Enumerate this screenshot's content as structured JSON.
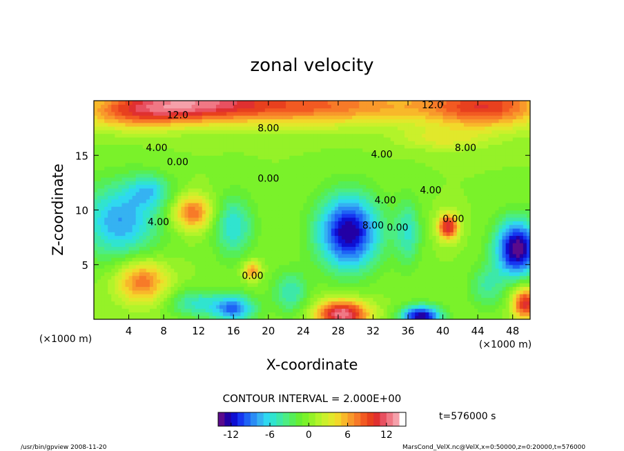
{
  "chart_data": {
    "type": "heatmap",
    "title": "zonal velocity",
    "xlabel": "X-coordinate",
    "ylabel": "Z-coordinate",
    "x_unit": "(×1000 m)",
    "y_unit": "(×1000 m)",
    "xlim": [
      0,
      50
    ],
    "ylim": [
      0,
      20
    ],
    "x_ticks": [
      4,
      8,
      12,
      16,
      20,
      24,
      28,
      32,
      36,
      40,
      44,
      48
    ],
    "y_ticks": [
      5,
      10,
      15
    ],
    "contour_interval_label": "CONTOUR INTERVAL = 2.000E+00",
    "contour_labels": [
      {
        "text": "12.0",
        "x": 9.6,
        "z": 18.4
      },
      {
        "text": "12.0",
        "x": 38.8,
        "z": 19.3
      },
      {
        "text": "8.00",
        "x": 20.0,
        "z": 17.2
      },
      {
        "text": "8.00",
        "x": 42.6,
        "z": 15.4
      },
      {
        "text": "4.00",
        "x": 7.2,
        "z": 15.4
      },
      {
        "text": "4.00",
        "x": 33.0,
        "z": 14.8
      },
      {
        "text": "0.00",
        "x": 9.6,
        "z": 14.1
      },
      {
        "text": "0.00",
        "x": 20.0,
        "z": 12.6
      },
      {
        "text": "4.00",
        "x": 7.4,
        "z": 8.6
      },
      {
        "text": "4.00",
        "x": 33.4,
        "z": 10.6
      },
      {
        "text": "8.00",
        "x": 32.0,
        "z": 8.3
      },
      {
        "text": "0.00",
        "x": 34.8,
        "z": 8.1
      },
      {
        "text": "4.00",
        "x": 38.6,
        "z": 11.5
      },
      {
        "text": "0.00",
        "x": 41.2,
        "z": 8.9
      },
      {
        "text": "0.00",
        "x": 18.2,
        "z": 3.7
      }
    ],
    "features": [
      {
        "x": 9.5,
        "z": 19.8,
        "amp": 10,
        "sx": 9,
        "sz": 1.7
      },
      {
        "x": 25,
        "z": 19.6,
        "amp": 8,
        "sx": 14,
        "sz": 1.8
      },
      {
        "x": 45,
        "z": 19.5,
        "amp": 9,
        "sx": 7,
        "sz": 2.0
      },
      {
        "x": 4,
        "z": 18.6,
        "amp": 4,
        "sx": 6,
        "sz": 1.4
      },
      {
        "x": 40,
        "z": 16.5,
        "amp": 3,
        "sx": 5,
        "sz": 1.0
      },
      {
        "x": 3,
        "z": 9.0,
        "amp": -8,
        "sx": 4.5,
        "sz": 3.5
      },
      {
        "x": 6.5,
        "z": 11.8,
        "amp": -5,
        "sx": 2.5,
        "sz": 1.5
      },
      {
        "x": 11.3,
        "z": 9.8,
        "amp": 8,
        "sx": 2.3,
        "sz": 1.6
      },
      {
        "x": 16,
        "z": 8.5,
        "amp": -6,
        "sx": 2.3,
        "sz": 2.8
      },
      {
        "x": 18.1,
        "z": 4.5,
        "amp": 7,
        "sx": 1.0,
        "sz": 0.9
      },
      {
        "x": 29.2,
        "z": 8.0,
        "amp": -13,
        "sx": 3.6,
        "sz": 3.4
      },
      {
        "x": 36,
        "z": 8,
        "amp": -5,
        "sx": 1.5,
        "sz": 3.0
      },
      {
        "x": 40.6,
        "z": 8.5,
        "amp": 11,
        "sx": 1.2,
        "sz": 1.2
      },
      {
        "x": 48.5,
        "z": 6.5,
        "amp": -14,
        "sx": 2.5,
        "sz": 2.6
      },
      {
        "x": 5.5,
        "z": 3.5,
        "amp": 8,
        "sx": 3.0,
        "sz": 2.0
      },
      {
        "x": 11.5,
        "z": 1.5,
        "amp": -5,
        "sx": 3.0,
        "sz": 1.3
      },
      {
        "x": 16,
        "z": 1,
        "amp": -9,
        "sx": 2.5,
        "sz": 1.3
      },
      {
        "x": 22.5,
        "z": 2.5,
        "amp": -5,
        "sx": 2.0,
        "sz": 2.0
      },
      {
        "x": 28.5,
        "z": 0.5,
        "amp": 13,
        "sx": 3.0,
        "sz": 1.3
      },
      {
        "x": 37.5,
        "z": 0.3,
        "amp": -13,
        "sx": 2.3,
        "sz": 1.0
      },
      {
        "x": 45,
        "z": 3,
        "amp": -4,
        "sx": 2.0,
        "sz": 2.0
      },
      {
        "x": 49.5,
        "z": 1.5,
        "amp": 11,
        "sx": 1.5,
        "sz": 1.5
      }
    ],
    "colorbar": {
      "min": -14,
      "max": 14,
      "step": 1,
      "ticks": [
        -12,
        -6,
        0,
        6,
        12
      ],
      "colors": [
        "#5a0a8c",
        "#2200a5",
        "#0e0fd2",
        "#1636f0",
        "#1e63f5",
        "#2a8cf5",
        "#35b2f2",
        "#2fd8f0",
        "#30e4cf",
        "#3de8a8",
        "#4ced82",
        "#55ee58",
        "#66ee33",
        "#7af22a",
        "#95f228",
        "#b2f42a",
        "#cbf02b",
        "#e1e82b",
        "#f2d82a",
        "#f8b82a",
        "#f8992b",
        "#f77a28",
        "#f25a22",
        "#e8401e",
        "#e03030",
        "#e85060",
        "#f07885",
        "#f5a0aa",
        "#ffffff"
      ]
    }
  },
  "time_label": "t=576000 s",
  "footer_left": "/usr/bin/gpview  2008-11-20",
  "footer_right": "MarsCond_VelX.nc@VelX,x=0:50000,z=0:20000,t=576000"
}
